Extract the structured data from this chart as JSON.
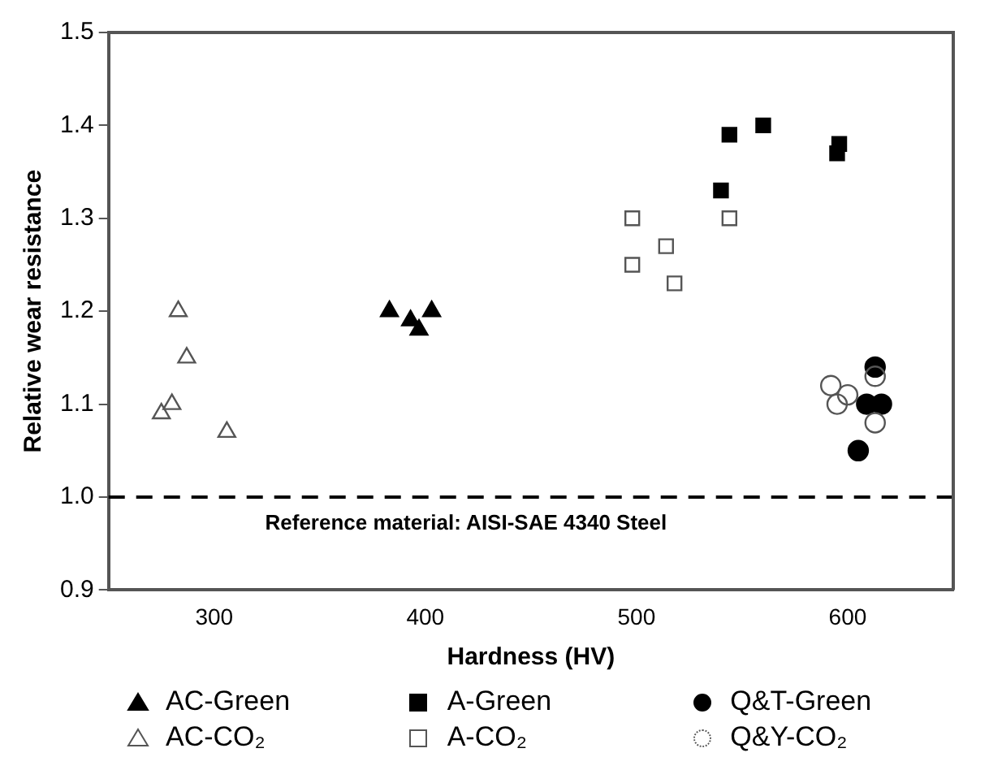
{
  "chart_data": {
    "type": "scatter",
    "xlabel": "Hardness (HV)",
    "ylabel": "Relative wear resistance",
    "xlim": [
      250,
      650
    ],
    "xticks": [
      300,
      400,
      500,
      600
    ],
    "ylim": [
      0.9,
      1.5
    ],
    "yticks": [
      {
        "value": 0.9,
        "label": "0.9"
      },
      {
        "value": 1.0,
        "label": "1.0"
      },
      {
        "value": 1.1,
        "label": "1.1"
      },
      {
        "value": 1.2,
        "label": "1.2"
      },
      {
        "value": 1.3,
        "label": "1.3"
      },
      {
        "value": 1.4,
        "label": "1.4"
      },
      {
        "value": 1.5,
        "label": "1.5"
      }
    ],
    "grid": false,
    "legend": "bottom",
    "ref_lines": [
      {
        "axis": "y",
        "value": 1.0,
        "label": "Reference material: AISI-SAE 4340 Steel",
        "color": "#000000",
        "line_style": "dashed"
      }
    ],
    "series": [
      {
        "name": "AC-Green",
        "color": "#000000",
        "marker": "triangle",
        "x": [
          383,
          393,
          397,
          403
        ],
        "values": [
          1.2,
          1.19,
          1.18,
          1.2
        ]
      },
      {
        "name": "A-Green",
        "color": "#000000",
        "marker": "square",
        "x": [
          544,
          560,
          540,
          596,
          595
        ],
        "values": [
          1.39,
          1.4,
          1.33,
          1.38,
          1.37
        ]
      },
      {
        "name": "Q&T-Green",
        "color": "#000000",
        "marker": "circle",
        "x": [
          613,
          609,
          616,
          605
        ],
        "values": [
          1.14,
          1.1,
          1.1,
          1.05
        ]
      },
      {
        "name": "AC-CO₂",
        "color": "#555555",
        "marker": "triangle",
        "x": [
          283,
          287,
          280,
          275,
          306
        ],
        "values": [
          1.2,
          1.15,
          1.1,
          1.09,
          1.07
        ]
      },
      {
        "name": "A-CO₂",
        "color": "#555555",
        "marker": "square",
        "x": [
          498,
          498,
          514,
          518,
          544
        ],
        "values": [
          1.3,
          1.25,
          1.27,
          1.23,
          1.3
        ]
      },
      {
        "name": "Q&Y-CO₂",
        "color": "#555555",
        "marker": "circle",
        "x": [
          592,
          595,
          600,
          613,
          613
        ],
        "values": [
          1.12,
          1.1,
          1.11,
          1.13,
          1.08
        ]
      }
    ]
  }
}
